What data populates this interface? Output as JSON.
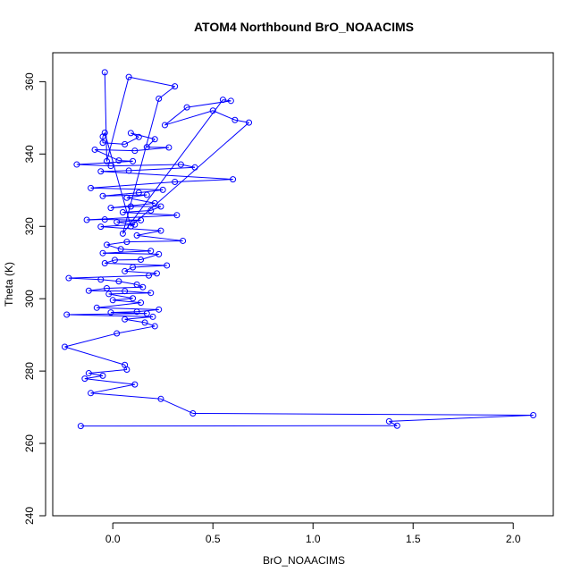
{
  "chart_data": {
    "type": "line",
    "title": "ATOM4 Northbound BrO_NOAACIMS",
    "xlabel": "BrO_NOAACIMS",
    "ylabel": "Theta (K)",
    "xlim": [
      -0.3,
      2.2
    ],
    "ylim": [
      240,
      368
    ],
    "xticks": [
      0.0,
      0.5,
      1.0,
      1.5,
      2.0
    ],
    "xtick_labels": [
      "0.0",
      "0.5",
      "1.0",
      "1.5",
      "2.0"
    ],
    "yticks": [
      240,
      260,
      280,
      300,
      320,
      340,
      360
    ],
    "ytick_labels": [
      "240",
      "260",
      "280",
      "300",
      "320",
      "340",
      "360"
    ],
    "grid": false,
    "series": [
      {
        "color": "#0000ff",
        "marker": "open-circle",
        "points": [
          {
            "x": -0.04,
            "y": 362.6
          },
          {
            "x": -0.03,
            "y": 338.0
          },
          {
            "x": 0.08,
            "y": 361.3
          },
          {
            "x": 0.31,
            "y": 358.7
          },
          {
            "x": 0.23,
            "y": 355.3
          },
          {
            "x": 0.05,
            "y": 318.0
          },
          {
            "x": 0.55,
            "y": 355.0
          },
          {
            "x": 0.59,
            "y": 354.7
          },
          {
            "x": 0.37,
            "y": 352.9
          },
          {
            "x": 0.26,
            "y": 348.0
          },
          {
            "x": 0.5,
            "y": 352.0
          },
          {
            "x": 0.61,
            "y": 349.4
          },
          {
            "x": 0.68,
            "y": 348.7
          },
          {
            "x": 0.09,
            "y": 320.0
          },
          {
            "x": -0.04,
            "y": 345.9
          },
          {
            "x": -0.05,
            "y": 344.8
          },
          {
            "x": -0.05,
            "y": 343.1
          },
          {
            "x": 0.06,
            "y": 342.7
          },
          {
            "x": 0.13,
            "y": 344.7
          },
          {
            "x": 0.09,
            "y": 345.8
          },
          {
            "x": 0.21,
            "y": 344.1
          },
          {
            "x": 0.17,
            "y": 341.9
          },
          {
            "x": 0.28,
            "y": 341.8
          },
          {
            "x": 0.11,
            "y": 340.9
          },
          {
            "x": -0.09,
            "y": 341.2
          },
          {
            "x": 0.03,
            "y": 338.2
          },
          {
            "x": 0.1,
            "y": 338.0
          },
          {
            "x": -0.18,
            "y": 337.1
          },
          {
            "x": -0.01,
            "y": 336.7
          },
          {
            "x": 0.34,
            "y": 337.1
          },
          {
            "x": 0.41,
            "y": 336.3
          },
          {
            "x": 0.08,
            "y": 335.4
          },
          {
            "x": -0.06,
            "y": 335.2
          },
          {
            "x": 0.6,
            "y": 333.0
          },
          {
            "x": 0.31,
            "y": 332.3
          },
          {
            "x": -0.11,
            "y": 330.6
          },
          {
            "x": 0.25,
            "y": 330.1
          },
          {
            "x": 0.13,
            "y": 329.3
          },
          {
            "x": -0.05,
            "y": 328.4
          },
          {
            "x": 0.17,
            "y": 328.7
          },
          {
            "x": 0.07,
            "y": 327.9
          },
          {
            "x": 0.21,
            "y": 326.4
          },
          {
            "x": -0.01,
            "y": 325.1
          },
          {
            "x": 0.09,
            "y": 325.5
          },
          {
            "x": 0.24,
            "y": 325.5
          },
          {
            "x": 0.19,
            "y": 324.4
          },
          {
            "x": 0.05,
            "y": 323.9
          },
          {
            "x": 0.32,
            "y": 323.1
          },
          {
            "x": -0.13,
            "y": 321.8
          },
          {
            "x": -0.04,
            "y": 321.9
          },
          {
            "x": 0.14,
            "y": 321.7
          },
          {
            "x": 0.02,
            "y": 321.2
          },
          {
            "x": 0.11,
            "y": 320.5
          },
          {
            "x": -0.06,
            "y": 319.9
          },
          {
            "x": 0.24,
            "y": 318.8
          },
          {
            "x": 0.12,
            "y": 317.5
          },
          {
            "x": 0.35,
            "y": 316.0
          },
          {
            "x": 0.07,
            "y": 315.7
          },
          {
            "x": -0.03,
            "y": 314.9
          },
          {
            "x": 0.04,
            "y": 313.7
          },
          {
            "x": 0.19,
            "y": 313.2
          },
          {
            "x": -0.05,
            "y": 312.6
          },
          {
            "x": 0.23,
            "y": 312.3
          },
          {
            "x": 0.14,
            "y": 310.8
          },
          {
            "x": 0.01,
            "y": 310.7
          },
          {
            "x": -0.04,
            "y": 309.8
          },
          {
            "x": 0.27,
            "y": 309.2
          },
          {
            "x": 0.1,
            "y": 308.7
          },
          {
            "x": 0.06,
            "y": 307.6
          },
          {
            "x": 0.22,
            "y": 307.0
          },
          {
            "x": 0.18,
            "y": 306.4
          },
          {
            "x": -0.22,
            "y": 305.7
          },
          {
            "x": -0.06,
            "y": 305.3
          },
          {
            "x": 0.03,
            "y": 304.8
          },
          {
            "x": 0.12,
            "y": 303.9
          },
          {
            "x": 0.15,
            "y": 303.2
          },
          {
            "x": -0.03,
            "y": 302.9
          },
          {
            "x": -0.12,
            "y": 302.2
          },
          {
            "x": 0.06,
            "y": 302.1
          },
          {
            "x": 0.19,
            "y": 301.6
          },
          {
            "x": -0.02,
            "y": 301.3
          },
          {
            "x": 0.1,
            "y": 300.1
          },
          {
            "x": 0.0,
            "y": 299.6
          },
          {
            "x": 0.14,
            "y": 298.9
          },
          {
            "x": -0.08,
            "y": 297.5
          },
          {
            "x": 0.23,
            "y": 297.0
          },
          {
            "x": 0.12,
            "y": 296.4
          },
          {
            "x": -0.01,
            "y": 296.2
          },
          {
            "x": 0.17,
            "y": 295.9
          },
          {
            "x": -0.23,
            "y": 295.6
          },
          {
            "x": 0.2,
            "y": 295.0
          },
          {
            "x": 0.06,
            "y": 294.3
          },
          {
            "x": 0.16,
            "y": 293.4
          },
          {
            "x": 0.21,
            "y": 292.4
          },
          {
            "x": 0.02,
            "y": 290.4
          },
          {
            "x": -0.24,
            "y": 286.7
          },
          {
            "x": 0.06,
            "y": 281.7
          },
          {
            "x": 0.07,
            "y": 280.4
          },
          {
            "x": -0.12,
            "y": 279.4
          },
          {
            "x": -0.05,
            "y": 278.7
          },
          {
            "x": -0.14,
            "y": 277.9
          },
          {
            "x": 0.11,
            "y": 276.3
          },
          {
            "x": -0.11,
            "y": 273.9
          },
          {
            "x": 0.24,
            "y": 272.3
          },
          {
            "x": 0.4,
            "y": 268.3
          },
          {
            "x": 2.1,
            "y": 267.8
          },
          {
            "x": 1.38,
            "y": 266.1
          },
          {
            "x": 1.42,
            "y": 264.9
          },
          {
            "x": -0.16,
            "y": 264.8
          }
        ]
      }
    ]
  }
}
